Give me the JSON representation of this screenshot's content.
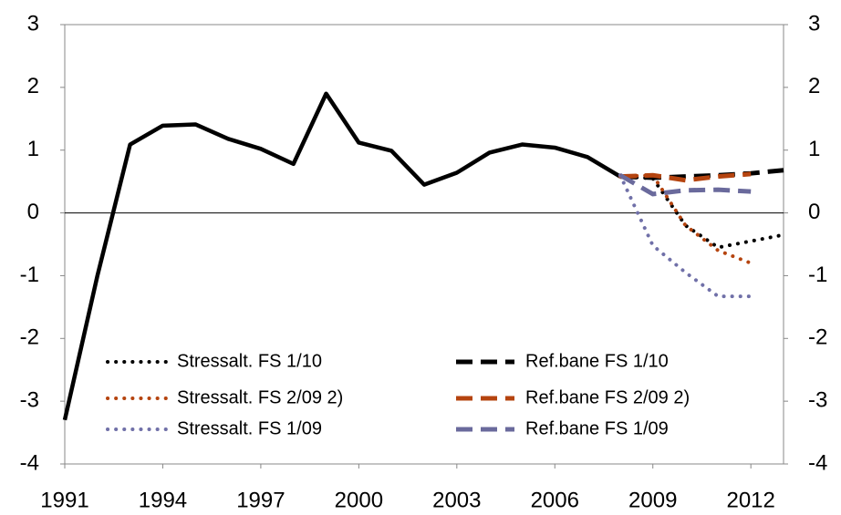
{
  "chart_data": {
    "type": "line",
    "x": [
      1991,
      1992,
      1993,
      1994,
      1995,
      1996,
      1997,
      1998,
      1999,
      2000,
      2001,
      2002,
      2003,
      2004,
      2005,
      2006,
      2007,
      2008,
      2009,
      2010,
      2011,
      2012,
      2013
    ],
    "xlim": [
      1991,
      2013
    ],
    "xticks": [
      1991,
      1994,
      1997,
      2000,
      2003,
      2006,
      2009,
      2012
    ],
    "ylim": [
      -4,
      3
    ],
    "yticks": [
      -4,
      -3,
      -2,
      -1,
      0,
      1,
      2,
      3
    ],
    "y2lim": [
      -4,
      3
    ],
    "y2ticks": [
      -4,
      -3,
      -2,
      -1,
      0,
      1,
      2,
      3
    ],
    "series": [
      {
        "color": "#000000",
        "style": "solid",
        "values": [
          -3.3,
          -1.0,
          1.09,
          1.39,
          1.41,
          1.18,
          1.02,
          0.78,
          1.9,
          1.12,
          0.99,
          0.45,
          0.64,
          0.96,
          1.09,
          1.04,
          0.89,
          0.58,
          null,
          null,
          null,
          null,
          null
        ]
      },
      {
        "name": "Stressalt. FS 1/10",
        "color": "#000000",
        "style": "dotted",
        "values": [
          null,
          null,
          null,
          null,
          null,
          null,
          null,
          null,
          null,
          null,
          null,
          null,
          null,
          null,
          null,
          null,
          null,
          0.58,
          0.55,
          -0.2,
          -0.55,
          -0.45,
          -0.35
        ]
      },
      {
        "name": "Stressalt. FS 2/09 2)",
        "color": "#b5440f",
        "style": "dotted",
        "values": [
          null,
          null,
          null,
          null,
          null,
          null,
          null,
          null,
          null,
          null,
          null,
          null,
          null,
          null,
          null,
          null,
          null,
          0.58,
          0.6,
          -0.2,
          -0.6,
          -0.8,
          null
        ]
      },
      {
        "name": "Stressalt. FS 1/09",
        "color": "#7070a8",
        "style": "dotted",
        "values": [
          null,
          null,
          null,
          null,
          null,
          null,
          null,
          null,
          null,
          null,
          null,
          null,
          null,
          null,
          null,
          null,
          null,
          0.6,
          -0.52,
          -0.95,
          -1.33,
          -1.33,
          null
        ]
      },
      {
        "name": "Ref.bane FS 1/10",
        "color": "#000000",
        "style": "dashed",
        "values": [
          null,
          null,
          null,
          null,
          null,
          null,
          null,
          null,
          null,
          null,
          null,
          null,
          null,
          null,
          null,
          null,
          null,
          0.58,
          0.56,
          0.58,
          0.6,
          0.63,
          0.68
        ]
      },
      {
        "name": "Ref.bane FS 2/09 2)",
        "color": "#b5440f",
        "style": "dashed",
        "values": [
          null,
          null,
          null,
          null,
          null,
          null,
          null,
          null,
          null,
          null,
          null,
          null,
          null,
          null,
          null,
          null,
          null,
          0.58,
          0.6,
          0.52,
          0.58,
          0.62,
          null
        ]
      },
      {
        "name": "Ref.bane FS 1/09",
        "color": "#6a6a9c",
        "style": "dashed",
        "values": [
          null,
          null,
          null,
          null,
          null,
          null,
          null,
          null,
          null,
          null,
          null,
          null,
          null,
          null,
          null,
          null,
          null,
          0.6,
          0.3,
          0.36,
          0.37,
          0.34,
          null
        ]
      }
    ]
  }
}
